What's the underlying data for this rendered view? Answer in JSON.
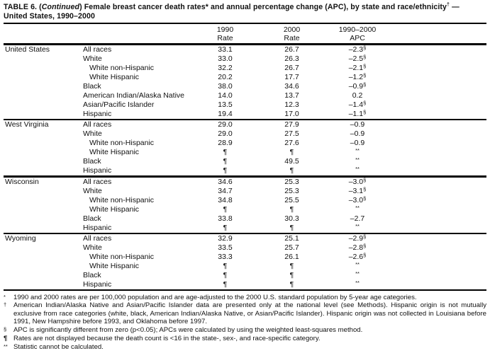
{
  "title": {
    "part1": "TABLE 6. (",
    "continued": "Continued",
    "part2": ") Female breast cancer death rates* and annual percentage change (APC), by state and race/ethnicity",
    "dagger": "†",
    "part3": " —",
    "line2": "United States, 1990–2000"
  },
  "columns": [
    {
      "line1": "1990",
      "line2": "Rate"
    },
    {
      "line1": "2000",
      "line2": "Rate"
    },
    {
      "line1": "1990–2000",
      "line2": "APC"
    }
  ],
  "sections": [
    {
      "state": "United States",
      "rows": [
        {
          "race": "All races",
          "indent": 0,
          "r1990": "33.1",
          "r2000": "26.7",
          "apc": "–2.3",
          "apc_mark": "§"
        },
        {
          "race": "White",
          "indent": 0,
          "r1990": "33.0",
          "r2000": "26.3",
          "apc": "–2.5",
          "apc_mark": "§"
        },
        {
          "race": "White non-Hispanic",
          "indent": 1,
          "r1990": "32.2",
          "r2000": "26.7",
          "apc": "–2.1",
          "apc_mark": "§"
        },
        {
          "race": "White Hispanic",
          "indent": 1,
          "r1990": "20.2",
          "r2000": "17.7",
          "apc": "–1.2",
          "apc_mark": "§"
        },
        {
          "race": "Black",
          "indent": 0,
          "r1990": "38.0",
          "r2000": "34.6",
          "apc": "–0.9",
          "apc_mark": "§"
        },
        {
          "race": "American Indian/Alaska Native",
          "indent": 0,
          "r1990": "14.0",
          "r2000": "13.7",
          "apc": "0.2",
          "apc_mark": ""
        },
        {
          "race": "Asian/Pacific Islander",
          "indent": 0,
          "r1990": "13.5",
          "r2000": "12.3",
          "apc": "–1.4",
          "apc_mark": "§"
        },
        {
          "race": "Hispanic",
          "indent": 0,
          "r1990": "19.4",
          "r2000": "17.0",
          "apc": "–1.1",
          "apc_mark": "§"
        }
      ]
    },
    {
      "state": "West Virginia",
      "rows": [
        {
          "race": "All races",
          "indent": 0,
          "r1990": "29.0",
          "r2000": "27.9",
          "apc": "–0.9",
          "apc_mark": ""
        },
        {
          "race": "White",
          "indent": 0,
          "r1990": "29.0",
          "r2000": "27.5",
          "apc": "–0.9",
          "apc_mark": ""
        },
        {
          "race": "White non-Hispanic",
          "indent": 1,
          "r1990": "28.9",
          "r2000": "27.6",
          "apc": "–0.9",
          "apc_mark": ""
        },
        {
          "race": "White Hispanic",
          "indent": 1,
          "r1990": "¶",
          "r2000": "¶",
          "apc": "",
          "apc_mark": "**"
        },
        {
          "race": "Black",
          "indent": 0,
          "r1990": "¶",
          "r2000": "49.5",
          "apc": "",
          "apc_mark": "**"
        },
        {
          "race": "Hispanic",
          "indent": 0,
          "r1990": "¶",
          "r2000": "¶",
          "apc": "",
          "apc_mark": "**"
        }
      ]
    },
    {
      "state": "Wisconsin",
      "rows": [
        {
          "race": "All races",
          "indent": 0,
          "r1990": "34.6",
          "r2000": "25.3",
          "apc": "–3.0",
          "apc_mark": "§"
        },
        {
          "race": "White",
          "indent": 0,
          "r1990": "34.7",
          "r2000": "25.3",
          "apc": "–3.1",
          "apc_mark": "§"
        },
        {
          "race": "White non-Hispanic",
          "indent": 1,
          "r1990": "34.8",
          "r2000": "25.5",
          "apc": "–3.0",
          "apc_mark": "§"
        },
        {
          "race": "White Hispanic",
          "indent": 1,
          "r1990": "¶",
          "r2000": "¶",
          "apc": "",
          "apc_mark": "**"
        },
        {
          "race": "Black",
          "indent": 0,
          "r1990": "33.8",
          "r2000": "30.3",
          "apc": "–2.7",
          "apc_mark": ""
        },
        {
          "race": "Hispanic",
          "indent": 0,
          "r1990": "¶",
          "r2000": "¶",
          "apc": "",
          "apc_mark": "**"
        }
      ]
    },
    {
      "state": "Wyoming",
      "rows": [
        {
          "race": "All races",
          "indent": 0,
          "r1990": "32.9",
          "r2000": "25.1",
          "apc": "–2.9",
          "apc_mark": "§"
        },
        {
          "race": "White",
          "indent": 0,
          "r1990": "33.5",
          "r2000": "25.7",
          "apc": "–2.8",
          "apc_mark": "§"
        },
        {
          "race": "White non-Hispanic",
          "indent": 1,
          "r1990": "33.3",
          "r2000": "26.1",
          "apc": "–2.6",
          "apc_mark": "§"
        },
        {
          "race": "White Hispanic",
          "indent": 1,
          "r1990": "¶",
          "r2000": "¶",
          "apc": "",
          "apc_mark": "**"
        },
        {
          "race": "Black",
          "indent": 0,
          "r1990": "¶",
          "r2000": "¶",
          "apc": "",
          "apc_mark": "**"
        },
        {
          "race": "Hispanic",
          "indent": 0,
          "r1990": "¶",
          "r2000": "¶",
          "apc": "",
          "apc_mark": "**"
        }
      ]
    }
  ],
  "footnotes": [
    {
      "marker": "*",
      "text": "1990 and 2000 rates are per 100,000 population and are age-adjusted to the 2000 U.S. standard population by 5-year age categories."
    },
    {
      "marker": "†",
      "text": "American Indian/Alaska Native and Asian/Pacific Islander data are presented only at the national level (see Methods). Hispanic origin is not mutually exclusive from race categories (white, black, American Indian/Alaska Native, or Asian/Pacific Islander). Hispanic origin was not collected in Louisiana before 1991, New Hampshire before 1993, and Oklahoma before 1997."
    },
    {
      "marker": "§",
      "text": "APC is significantly different from zero (p<0.05); APCs were calculated by using the weighted least-squares method."
    },
    {
      "marker": "¶",
      "text": "Rates are not displayed because the death count is <16 in the state-, sex-, and race-specific category."
    },
    {
      "marker": "**",
      "text": "Statistic cannot be calculated."
    }
  ]
}
